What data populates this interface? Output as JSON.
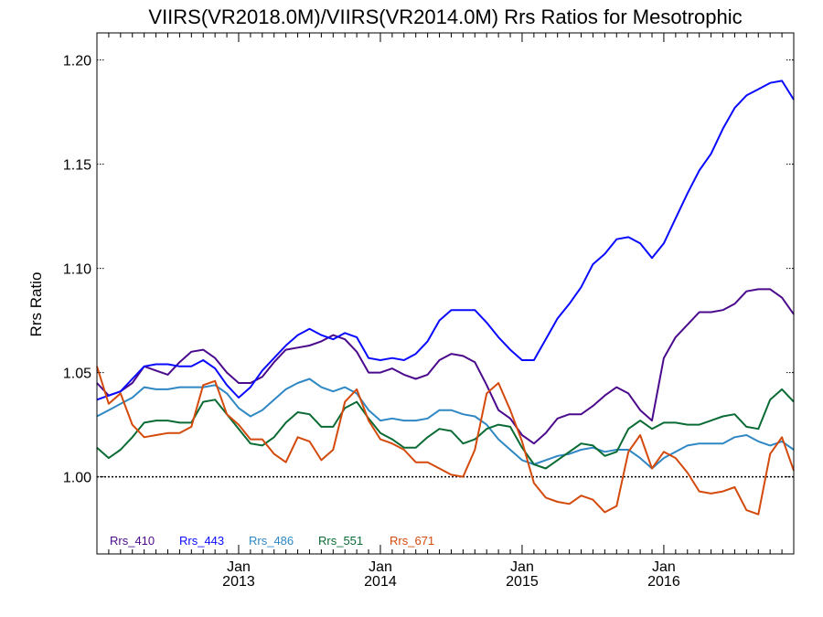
{
  "chart_data": {
    "type": "line",
    "title": "VIIRS(VR2018.0M)/VIIRS(VR2014.0M)  Rrs Ratios for Mesotrophic",
    "xlabel": "",
    "ylabel": "Rrs Ratio",
    "ylim": [
      0.963,
      1.213
    ],
    "xlim": [
      "2012-01",
      "2016-12"
    ],
    "y_ticks": [
      1.0,
      1.05,
      1.1,
      1.15,
      1.2
    ],
    "y_tick_labels": [
      "1.00",
      "1.05",
      "1.10",
      "1.15",
      "1.20"
    ],
    "x_ticks": [
      {
        "month": "Jan",
        "year": "2013"
      },
      {
        "month": "Jan",
        "year": "2014"
      },
      {
        "month": "Jan",
        "year": "2015"
      },
      {
        "month": "Jan",
        "year": "2016"
      }
    ],
    "reference_line": 1.0,
    "grid": false,
    "legend_position": "bottom-left",
    "x_dates": [
      "2012-01",
      "2012-02",
      "2012-03",
      "2012-04",
      "2012-05",
      "2012-06",
      "2012-07",
      "2012-08",
      "2012-09",
      "2012-10",
      "2012-11",
      "2012-12",
      "2013-01",
      "2013-02",
      "2013-03",
      "2013-04",
      "2013-05",
      "2013-06",
      "2013-07",
      "2013-08",
      "2013-09",
      "2013-10",
      "2013-11",
      "2013-12",
      "2014-01",
      "2014-02",
      "2014-03",
      "2014-04",
      "2014-05",
      "2014-06",
      "2014-07",
      "2014-08",
      "2014-09",
      "2014-10",
      "2014-11",
      "2014-12",
      "2015-01",
      "2015-02",
      "2015-03",
      "2015-04",
      "2015-05",
      "2015-06",
      "2015-07",
      "2015-08",
      "2015-09",
      "2015-10",
      "2015-11",
      "2015-12",
      "2016-01",
      "2016-02",
      "2016-03",
      "2016-04",
      "2016-05",
      "2016-06",
      "2016-07",
      "2016-08",
      "2016-09",
      "2016-10",
      "2016-11",
      "2016-12"
    ],
    "series": [
      {
        "name": "Rrs_410",
        "color": "#4b0a8c",
        "values": [
          1.045,
          1.039,
          1.041,
          1.045,
          1.053,
          1.051,
          1.049,
          1.055,
          1.06,
          1.061,
          1.057,
          1.05,
          1.045,
          1.045,
          1.048,
          1.055,
          1.061,
          1.062,
          1.063,
          1.065,
          1.068,
          1.066,
          1.06,
          1.05,
          1.05,
          1.052,
          1.049,
          1.047,
          1.049,
          1.056,
          1.059,
          1.058,
          1.055,
          1.044,
          1.032,
          1.028,
          1.02,
          1.016,
          1.021,
          1.028,
          1.03,
          1.03,
          1.034,
          1.039,
          1.043,
          1.04,
          1.032,
          1.027,
          1.057,
          1.067,
          1.073,
          1.079,
          1.079,
          1.08,
          1.083,
          1.089,
          1.09,
          1.09,
          1.086,
          1.078
        ]
      },
      {
        "name": "Rrs_443",
        "color": "#0a0aff",
        "values": [
          1.037,
          1.039,
          1.041,
          1.047,
          1.053,
          1.054,
          1.054,
          1.053,
          1.053,
          1.056,
          1.052,
          1.044,
          1.038,
          1.043,
          1.051,
          1.057,
          1.063,
          1.068,
          1.071,
          1.068,
          1.066,
          1.069,
          1.067,
          1.057,
          1.056,
          1.057,
          1.056,
          1.059,
          1.065,
          1.075,
          1.08,
          1.08,
          1.08,
          1.074,
          1.067,
          1.061,
          1.056,
          1.056,
          1.066,
          1.076,
          1.083,
          1.091,
          1.102,
          1.107,
          1.114,
          1.115,
          1.112,
          1.105,
          1.112,
          1.124,
          1.136,
          1.147,
          1.155,
          1.167,
          1.177,
          1.183,
          1.186,
          1.189,
          1.19,
          1.181
        ]
      },
      {
        "name": "Rrs_486",
        "color": "#2f88c4",
        "values": [
          1.029,
          1.032,
          1.035,
          1.038,
          1.043,
          1.042,
          1.042,
          1.043,
          1.043,
          1.043,
          1.044,
          1.04,
          1.033,
          1.029,
          1.032,
          1.037,
          1.042,
          1.045,
          1.047,
          1.043,
          1.041,
          1.043,
          1.04,
          1.032,
          1.027,
          1.028,
          1.027,
          1.027,
          1.028,
          1.032,
          1.032,
          1.03,
          1.029,
          1.025,
          1.018,
          1.013,
          1.008,
          1.006,
          1.008,
          1.01,
          1.011,
          1.013,
          1.014,
          1.012,
          1.013,
          1.013,
          1.009,
          1.004,
          1.009,
          1.012,
          1.015,
          1.016,
          1.016,
          1.016,
          1.019,
          1.02,
          1.017,
          1.015,
          1.017,
          1.013
        ]
      },
      {
        "name": "Rrs_551",
        "color": "#0b6b34",
        "values": [
          1.014,
          1.009,
          1.013,
          1.019,
          1.026,
          1.027,
          1.027,
          1.026,
          1.026,
          1.036,
          1.037,
          1.03,
          1.023,
          1.016,
          1.015,
          1.019,
          1.026,
          1.031,
          1.03,
          1.024,
          1.024,
          1.033,
          1.036,
          1.028,
          1.021,
          1.018,
          1.014,
          1.014,
          1.019,
          1.023,
          1.022,
          1.016,
          1.018,
          1.023,
          1.025,
          1.024,
          1.014,
          1.006,
          1.004,
          1.008,
          1.012,
          1.016,
          1.015,
          1.01,
          1.012,
          1.023,
          1.027,
          1.023,
          1.026,
          1.026,
          1.025,
          1.025,
          1.027,
          1.029,
          1.03,
          1.024,
          1.023,
          1.037,
          1.042,
          1.036
        ]
      },
      {
        "name": "Rrs_671",
        "color": "#d44a0c",
        "values": [
          1.053,
          1.035,
          1.04,
          1.025,
          1.019,
          1.02,
          1.021,
          1.021,
          1.024,
          1.044,
          1.046,
          1.03,
          1.025,
          1.018,
          1.018,
          1.011,
          1.007,
          1.019,
          1.017,
          1.008,
          1.013,
          1.036,
          1.042,
          1.027,
          1.018,
          1.016,
          1.013,
          1.007,
          1.007,
          1.004,
          1.001,
          1.0,
          1.013,
          1.04,
          1.045,
          1.032,
          1.017,
          0.997,
          0.99,
          0.988,
          0.987,
          0.991,
          0.989,
          0.983,
          0.986,
          1.012,
          1.02,
          1.004,
          1.012,
          1.009,
          1.002,
          0.993,
          0.992,
          0.993,
          0.995,
          0.984,
          0.982,
          1.011,
          1.019,
          1.003
        ]
      }
    ]
  }
}
